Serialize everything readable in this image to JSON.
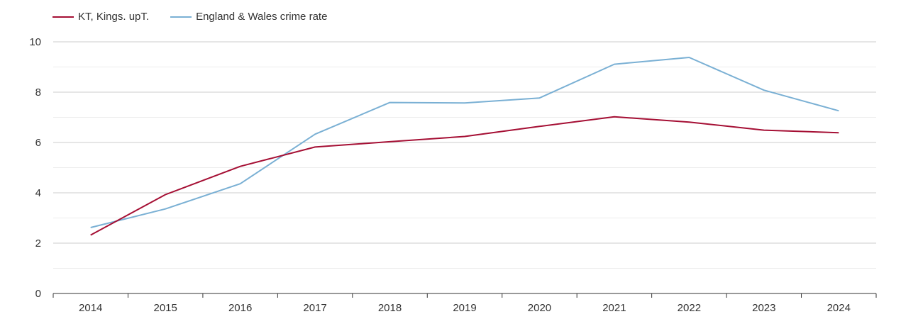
{
  "chart_data": {
    "type": "line",
    "x": [
      "2014",
      "2015",
      "2016",
      "2017",
      "2018",
      "2019",
      "2020",
      "2021",
      "2022",
      "2023",
      "2024"
    ],
    "ylim": [
      0,
      10
    ],
    "y_ticks": [
      "0",
      "2",
      "4",
      "6",
      "8",
      "10"
    ],
    "grid": true,
    "legend_position": "top-left",
    "series": [
      {
        "name": "KT, Kings. upT.",
        "color": "#a50f34",
        "values": [
          2.32,
          3.93,
          5.05,
          5.82,
          6.03,
          6.24,
          6.64,
          7.02,
          6.81,
          6.49,
          6.39
        ]
      },
      {
        "name": "England & Wales crime rate",
        "color": "#7ab0d4",
        "values": [
          2.62,
          3.36,
          4.36,
          6.33,
          7.59,
          7.57,
          7.77,
          9.11,
          9.38,
          8.08,
          7.26
        ]
      }
    ]
  }
}
